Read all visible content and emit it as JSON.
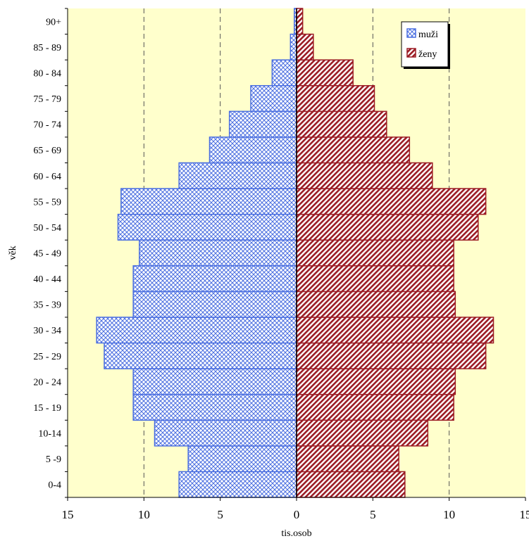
{
  "chart_data": {
    "type": "bar",
    "orientation": "horizontal",
    "layout": "population-pyramid",
    "categories": [
      "0-4",
      "5 -9",
      "10-14",
      "15 - 19",
      "20 - 24",
      "25 - 29",
      "30 - 34",
      "35 - 39",
      "40 - 44",
      "45 - 49",
      "50 - 54",
      "55 - 59",
      "60 - 64",
      "65 - 69",
      "70 - 74",
      "75 - 79",
      "80 - 84",
      "85 - 89",
      "90+"
    ],
    "series": [
      {
        "name": "muži",
        "side": "left",
        "color": "#4a6ee0",
        "values": [
          7.7,
          7.1,
          9.3,
          10.7,
          10.7,
          12.6,
          13.1,
          10.7,
          10.7,
          10.3,
          11.7,
          11.5,
          7.7,
          5.7,
          4.4,
          3.0,
          1.6,
          0.4,
          0.15
        ]
      },
      {
        "name": "ženy",
        "side": "right",
        "color": "#9b1b24",
        "values": [
          7.1,
          6.7,
          8.6,
          10.3,
          10.4,
          12.4,
          12.9,
          10.4,
          10.3,
          10.3,
          11.9,
          12.4,
          8.9,
          7.4,
          5.9,
          5.1,
          3.7,
          1.1,
          0.4
        ]
      }
    ],
    "xlim": [
      -15,
      15
    ],
    "xticks": [
      15,
      10,
      5,
      0,
      5,
      10,
      15
    ],
    "xlabel": "tis.osob",
    "ylabel": "věk",
    "grid": "vertical dashed",
    "legend": "top-right",
    "background": "#ffffcc"
  }
}
